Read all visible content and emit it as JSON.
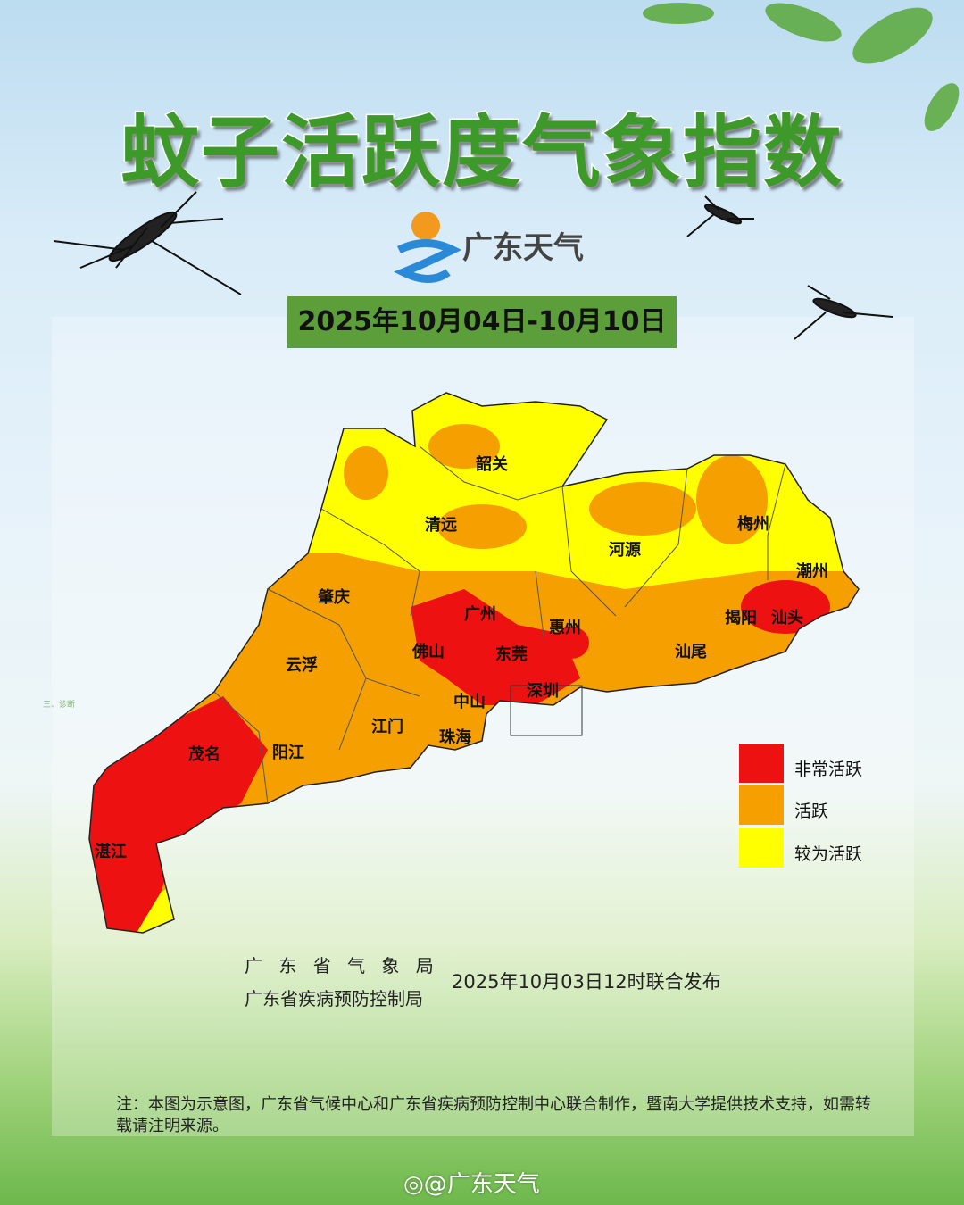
{
  "title": "蚊子活跃度气象指数",
  "logo": {
    "text": "广东天气"
  },
  "date_range": "2025年10月04日-10月10日",
  "cities": [
    "韶关",
    "清远",
    "梅州",
    "河源",
    "潮州",
    "肇庆",
    "广州",
    "惠州",
    "揭阳",
    "汕头",
    "佛山",
    "东莞",
    "汕尾",
    "云浮",
    "深圳",
    "中山",
    "江门",
    "珠海",
    "茂名",
    "阳江",
    "湛江"
  ],
  "legend": [
    {
      "label": "非常活跃",
      "color": "#ee1111"
    },
    {
      "label": "活跃",
      "color": "#f5a000"
    },
    {
      "label": "较为活跃",
      "color": "#ffff00"
    }
  ],
  "issuers": [
    "广 东 省 气 象 局",
    "广东省疾病预防控制局"
  ],
  "publish_time": "2025年10月03日12时联合发布",
  "note": "注：本图为示意图，广东省气候中心和广东省疾病预防控制中心联合制作，暨南大学提供技术支持，如需转载请注明来源。",
  "watermark": "@广东天气",
  "artifact_text": "三、诊断"
}
